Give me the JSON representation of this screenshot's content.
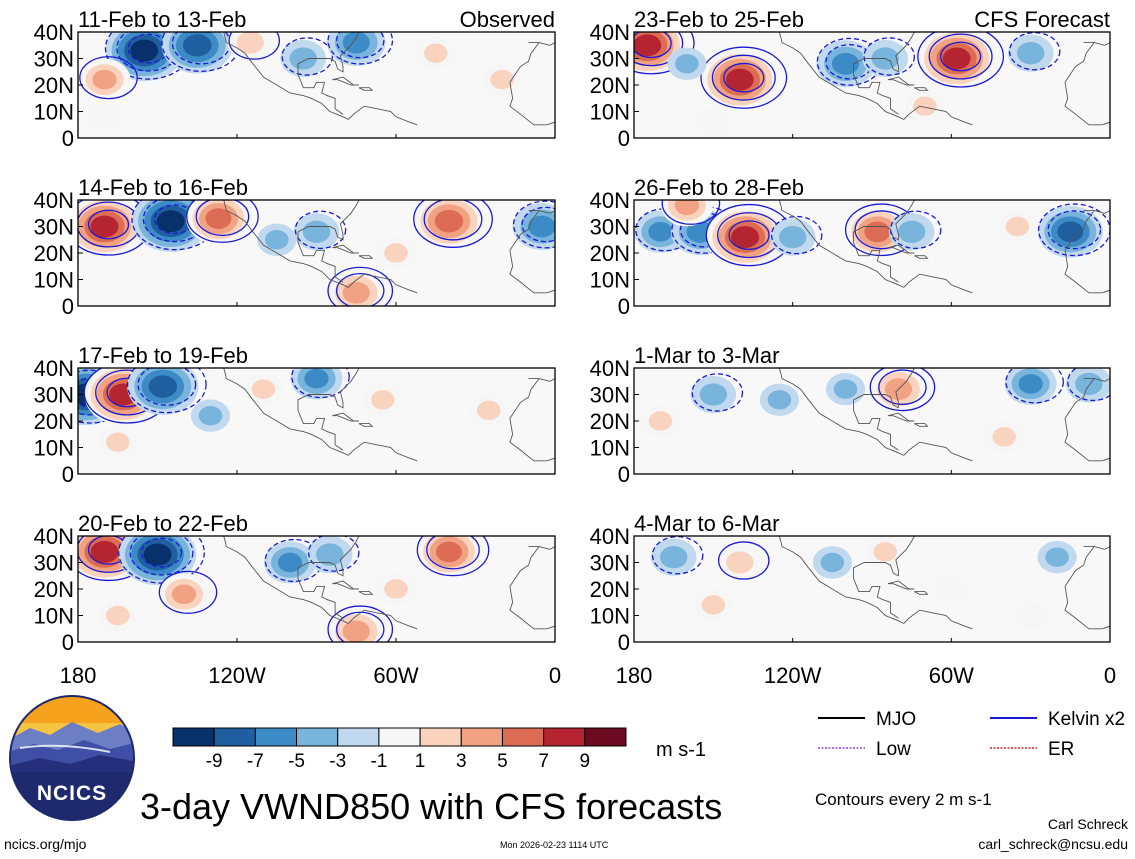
{
  "figure": {
    "title": "3-day VWND850 with CFS forecasts",
    "contour_note": "Contours every 2 m s-1",
    "author": "Carl Schreck",
    "email": "carl_schreck@ncsu.edu",
    "website": "ncics.org/mjo",
    "timestamp": "Mon 2026-02-23 1114 UTC",
    "logo_text": "NCICS"
  },
  "colorbar": {
    "unit": "m s-1",
    "tick_labels": [
      "-9",
      "-7",
      "-5",
      "-3",
      "-1",
      "1",
      "3",
      "5",
      "7",
      "9"
    ],
    "colors": [
      "#08306b",
      "#1f5fa0",
      "#3c8bc7",
      "#79b4dc",
      "#c0d9ee",
      "#f6f6f6",
      "#fad3bf",
      "#f0a282",
      "#dc6c54",
      "#b52431",
      "#6b0a21"
    ]
  },
  "legend": [
    {
      "label": "MJO",
      "color": "#000000",
      "style": "solid"
    },
    {
      "label": "Kelvin x2",
      "color": "#1a1ad6",
      "style": "solid"
    },
    {
      "label": "Low",
      "color": "#9a3fd4",
      "style": "dashed"
    },
    {
      "label": "ER",
      "color": "#e02020",
      "style": "dashed"
    }
  ],
  "chart_data": {
    "type": "heatmap",
    "variable": "VWND850 anomaly (m s-1) with Kelvin x2 contours",
    "x_tick_labels": [
      "180",
      "120W",
      "60W",
      "0"
    ],
    "xlim": [
      -180,
      0
    ],
    "y_tick_labels": [
      "40N",
      "30N",
      "20N",
      "10N",
      "0"
    ],
    "ylim": [
      0,
      40
    ],
    "contour_interval": 2,
    "panels": [
      {
        "title": "11-Feb to 13-Feb",
        "tag": "Observed",
        "column": "observed",
        "features": [
          {
            "lon": -155,
            "lat": 33,
            "value": -9
          },
          {
            "lon": -135,
            "lat": 35,
            "value": -8
          },
          {
            "lon": -170,
            "lat": 22,
            "value": 5
          },
          {
            "lon": -115,
            "lat": 36,
            "value": 4
          },
          {
            "lon": -95,
            "lat": 30,
            "value": -4
          },
          {
            "lon": -75,
            "lat": 36,
            "value": -6
          },
          {
            "lon": -45,
            "lat": 32,
            "value": 3
          },
          {
            "lon": -20,
            "lat": 22,
            "value": 3
          },
          {
            "lon": -170,
            "lat": 8,
            "value": 2
          }
        ]
      },
      {
        "title": "14-Feb to 16-Feb",
        "column": "observed",
        "features": [
          {
            "lon": -170,
            "lat": 30,
            "value": 9
          },
          {
            "lon": -145,
            "lat": 32,
            "value": -9
          },
          {
            "lon": -127,
            "lat": 33,
            "value": 7
          },
          {
            "lon": -105,
            "lat": 25,
            "value": -3
          },
          {
            "lon": -90,
            "lat": 28,
            "value": -4
          },
          {
            "lon": -40,
            "lat": 32,
            "value": 8
          },
          {
            "lon": -5,
            "lat": 30,
            "value": -6
          },
          {
            "lon": -75,
            "lat": 5,
            "value": 6
          },
          {
            "lon": -60,
            "lat": 20,
            "value": 3
          }
        ]
      },
      {
        "title": "17-Feb to 19-Feb",
        "column": "observed",
        "features": [
          {
            "lon": -177,
            "lat": 30,
            "value": -9
          },
          {
            "lon": -163,
            "lat": 30,
            "value": 9
          },
          {
            "lon": -148,
            "lat": 33,
            "value": -8
          },
          {
            "lon": -130,
            "lat": 22,
            "value": -3
          },
          {
            "lon": -110,
            "lat": 32,
            "value": 3
          },
          {
            "lon": -90,
            "lat": 36,
            "value": -5
          },
          {
            "lon": -65,
            "lat": 28,
            "value": 3
          },
          {
            "lon": -25,
            "lat": 24,
            "value": 3
          },
          {
            "lon": -165,
            "lat": 12,
            "value": 3
          }
        ]
      },
      {
        "title": "20-Feb to 22-Feb",
        "column": "observed",
        "features": [
          {
            "lon": -170,
            "lat": 34,
            "value": 9
          },
          {
            "lon": -150,
            "lat": 33,
            "value": -9
          },
          {
            "lon": -140,
            "lat": 18,
            "value": 5
          },
          {
            "lon": -100,
            "lat": 30,
            "value": -5
          },
          {
            "lon": -85,
            "lat": 33,
            "value": -4
          },
          {
            "lon": -40,
            "lat": 34,
            "value": 7
          },
          {
            "lon": -60,
            "lat": 20,
            "value": 3
          },
          {
            "lon": -75,
            "lat": 4,
            "value": 6
          },
          {
            "lon": -165,
            "lat": 10,
            "value": 3
          }
        ]
      },
      {
        "title": "23-Feb to 25-Feb",
        "tag": "CFS Forecast",
        "column": "forecast",
        "features": [
          {
            "lon": -175,
            "lat": 35,
            "value": 9
          },
          {
            "lon": -140,
            "lat": 22,
            "value": 9
          },
          {
            "lon": -160,
            "lat": 28,
            "value": -3
          },
          {
            "lon": -100,
            "lat": 28,
            "value": -6
          },
          {
            "lon": -85,
            "lat": 30,
            "value": -4
          },
          {
            "lon": -58,
            "lat": 30,
            "value": 9
          },
          {
            "lon": -30,
            "lat": 32,
            "value": -4
          },
          {
            "lon": -70,
            "lat": 12,
            "value": 3
          },
          {
            "lon": -150,
            "lat": 6,
            "value": 2
          }
        ]
      },
      {
        "title": "26-Feb to 28-Feb",
        "column": "forecast",
        "features": [
          {
            "lon": -170,
            "lat": 28,
            "value": -5
          },
          {
            "lon": -155,
            "lat": 28,
            "value": -6
          },
          {
            "lon": -138,
            "lat": 26,
            "value": 9
          },
          {
            "lon": -120,
            "lat": 26,
            "value": -4
          },
          {
            "lon": -88,
            "lat": 28,
            "value": 7
          },
          {
            "lon": -75,
            "lat": 28,
            "value": -4
          },
          {
            "lon": -15,
            "lat": 28,
            "value": -7
          },
          {
            "lon": -35,
            "lat": 30,
            "value": 3
          },
          {
            "lon": -160,
            "lat": 38,
            "value": 5
          }
        ]
      },
      {
        "title": "1-Mar to 3-Mar",
        "column": "forecast",
        "features": [
          {
            "lon": -150,
            "lat": 30,
            "value": -4
          },
          {
            "lon": -125,
            "lat": 28,
            "value": -3
          },
          {
            "lon": -100,
            "lat": 32,
            "value": -3
          },
          {
            "lon": -80,
            "lat": 32,
            "value": 6
          },
          {
            "lon": -30,
            "lat": 34,
            "value": -5
          },
          {
            "lon": -8,
            "lat": 34,
            "value": -4
          },
          {
            "lon": -170,
            "lat": 20,
            "value": 3
          },
          {
            "lon": -40,
            "lat": 14,
            "value": 3
          }
        ]
      },
      {
        "title": "4-Mar to 6-Mar",
        "column": "forecast",
        "features": [
          {
            "lon": -165,
            "lat": 32,
            "value": -4
          },
          {
            "lon": -140,
            "lat": 30,
            "value": 4
          },
          {
            "lon": -150,
            "lat": 14,
            "value": 3
          },
          {
            "lon": -105,
            "lat": 30,
            "value": -3
          },
          {
            "lon": -85,
            "lat": 34,
            "value": 3
          },
          {
            "lon": -60,
            "lat": 20,
            "value": 2
          },
          {
            "lon": -20,
            "lat": 32,
            "value": -3
          },
          {
            "lon": -30,
            "lat": 10,
            "value": 2
          }
        ]
      }
    ]
  }
}
